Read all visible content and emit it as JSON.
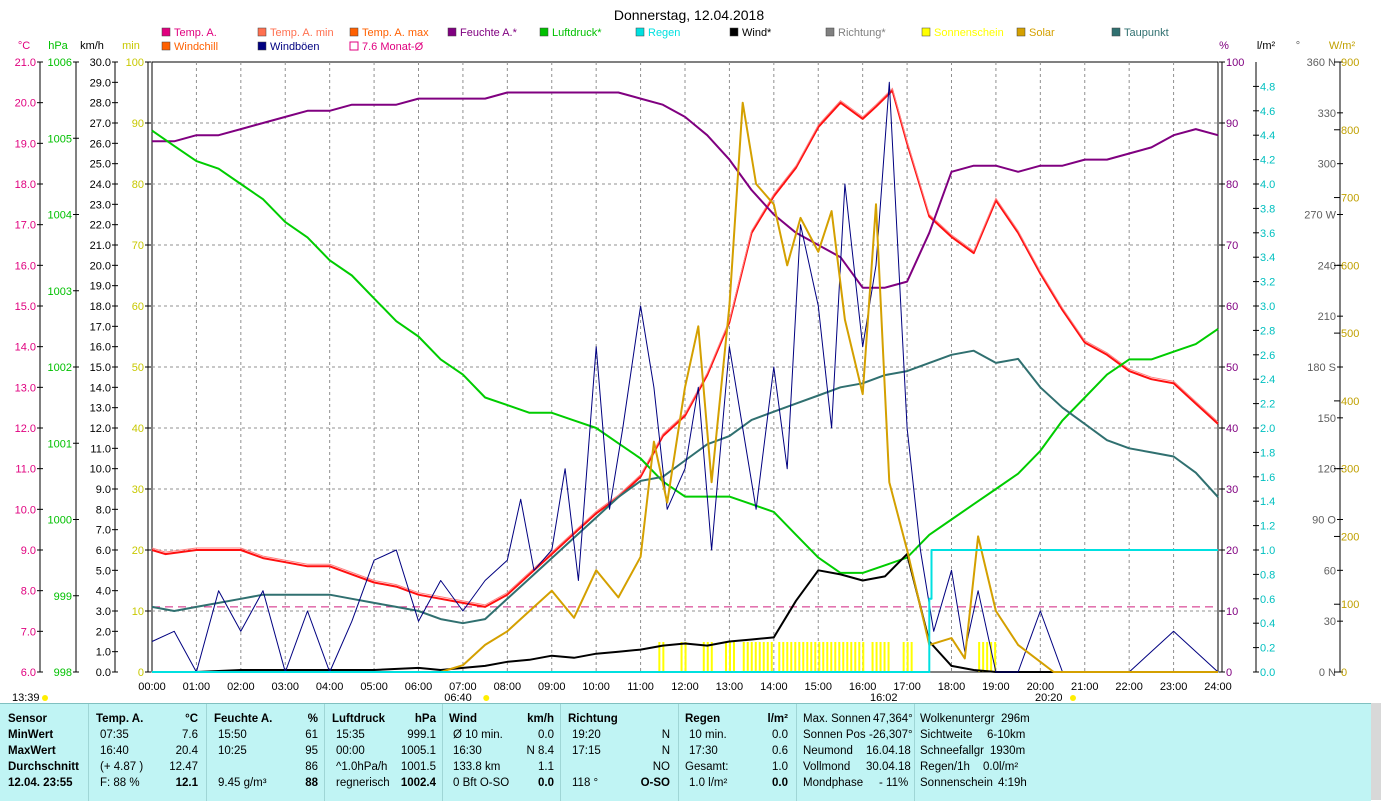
{
  "chart_data": {
    "type": "line",
    "title": "Donnerstag, 12.04.2018",
    "x_ticks": [
      "00:00",
      "01:00",
      "02:00",
      "03:00",
      "04:00",
      "05:00",
      "06:00",
      "07:00",
      "08:00",
      "09:00",
      "10:00",
      "11:00",
      "12:00",
      "13:00",
      "14:00",
      "15:00",
      "16:00",
      "17:00",
      "18:00",
      "19:00",
      "20:00",
      "21:00",
      "22:00",
      "23:00",
      "24:00"
    ],
    "xlim": [
      0,
      24
    ],
    "sunrise": "06:40",
    "sunset": "20:20",
    "marker_1339": "13:39",
    "marker_1602": "16:02",
    "axes": {
      "temp": {
        "unit": "°C",
        "range": [
          6,
          21
        ],
        "color": "#e0007f",
        "ticks": [
          "21.0",
          "20.0",
          "19.0",
          "18.0",
          "17.0",
          "16.0",
          "15.0",
          "14.0",
          "13.0",
          "12.0",
          "11.0",
          "10.0",
          "9.0",
          "8.0",
          "7.0",
          "6.0"
        ]
      },
      "pressure": {
        "unit": "hPa",
        "range": [
          998,
          1006
        ],
        "color": "#00c000",
        "ticks": [
          "1006",
          "1005",
          "1004",
          "1003",
          "1002",
          "1001",
          "1000",
          "999",
          "998"
        ]
      },
      "wind": {
        "unit": "km/h",
        "range": [
          0,
          30
        ],
        "color": "#000000",
        "ticks": [
          "30.0",
          "29.0",
          "28.0",
          "27.0",
          "26.0",
          "25.0",
          "24.0",
          "23.0",
          "22.0",
          "21.0",
          "20.0",
          "19.0",
          "18.0",
          "17.0",
          "16.0",
          "15.0",
          "14.0",
          "13.0",
          "12.0",
          "11.0",
          "10.0",
          "9.0",
          "8.0",
          "7.0",
          "6.0",
          "5.0",
          "4.0",
          "3.0",
          "2.0",
          "1.0",
          "0.0"
        ]
      },
      "sunmin": {
        "unit": "min",
        "range": [
          0,
          100
        ],
        "color": "#c8c800",
        "ticks": [
          "100",
          "90",
          "80",
          "70",
          "60",
          "50",
          "40",
          "30",
          "20",
          "10",
          "0"
        ]
      },
      "humidity": {
        "unit": "%",
        "range": [
          0,
          100
        ],
        "color": "#800080",
        "ticks": [
          "100",
          "90",
          "80",
          "70",
          "60",
          "50",
          "40",
          "30",
          "20",
          "10",
          "0"
        ]
      },
      "rain": {
        "unit": "l/m²",
        "range": [
          0,
          5
        ],
        "color": "#00c0c0",
        "ticks": [
          "4.8",
          "4.6",
          "4.4",
          "4.2",
          "4.0",
          "3.8",
          "3.6",
          "3.4",
          "3.2",
          "3.0",
          "2.8",
          "2.6",
          "2.4",
          "2.2",
          "2.0",
          "1.8",
          "1.6",
          "1.4",
          "1.2",
          "1.0",
          "0.8",
          "0.6",
          "0.4",
          "0.2",
          "0.0"
        ]
      },
      "direction": {
        "unit": "°",
        "range": [
          0,
          360
        ],
        "color": "#606060",
        "ticks": [
          "360 N",
          "330",
          "300",
          "270 W",
          "240",
          "210",
          "180 S",
          "150",
          "120",
          "90 O",
          "60",
          "30",
          "0 N"
        ]
      },
      "solar": {
        "unit": "W/m²",
        "range": [
          0,
          900
        ],
        "color": "#c0a000",
        "ticks": [
          "900",
          "800",
          "700",
          "600",
          "500",
          "400",
          "300",
          "200",
          "100",
          "0"
        ]
      }
    },
    "legend": [
      {
        "label": "Temp. A.",
        "color": "#e0007f"
      },
      {
        "label": "Windchill",
        "color": "#ff6000"
      },
      {
        "label": "Temp. A. min",
        "color": "#ff7050"
      },
      {
        "label": "Windböen",
        "color": "#000080"
      },
      {
        "label": "Temp. A. max",
        "color": "#ff6000"
      },
      {
        "label": "7.6 Monat-Ø",
        "color": "#e0007f"
      },
      {
        "label": "Feuchte A.*",
        "color": "#800080"
      },
      {
        "label": "Luftdruck*",
        "color": "#00c000"
      },
      {
        "label": "Regen",
        "color": "#00e0e0"
      },
      {
        "label": "Wind*",
        "color": "#000000"
      },
      {
        "label": "Richtung*",
        "color": "#808080"
      },
      {
        "label": "Sonnenschein",
        "color": "#ffff00"
      },
      {
        "label": "Solar",
        "color": "#d4a000"
      },
      {
        "label": "Taupunkt",
        "color": "#307070"
      }
    ],
    "monthly_avg_temp": 7.6,
    "series": [
      {
        "name": "Temp. A.",
        "axis": "temp",
        "color": "#ff1010",
        "x": [
          0,
          0.3,
          1,
          1.5,
          2,
          2.5,
          3,
          3.5,
          4,
          4.5,
          5,
          5.5,
          6,
          6.5,
          7,
          7.5,
          8,
          8.5,
          9,
          9.5,
          10,
          10.5,
          11,
          11.5,
          12,
          12.5,
          13,
          13.5,
          14,
          14.5,
          15,
          15.5,
          16,
          16.3,
          16.67,
          17,
          17.5,
          18,
          18.5,
          19,
          19.5,
          20,
          20.5,
          21,
          21.5,
          22,
          22.5,
          23,
          23.5,
          24
        ],
        "y": [
          9.0,
          8.9,
          9.0,
          9.0,
          9.0,
          8.8,
          8.7,
          8.6,
          8.6,
          8.4,
          8.2,
          8.1,
          7.9,
          7.8,
          7.7,
          7.6,
          7.9,
          8.4,
          8.9,
          9.4,
          9.9,
          10.3,
          10.8,
          11.8,
          12.3,
          13.3,
          14.6,
          16.8,
          17.7,
          18.4,
          19.4,
          20.0,
          19.6,
          19.9,
          20.3,
          19.0,
          17.2,
          16.7,
          16.3,
          17.6,
          16.8,
          15.8,
          14.9,
          14.1,
          13.8,
          13.4,
          13.2,
          13.1,
          12.6,
          12.1
        ]
      },
      {
        "name": "Feuchte A.*",
        "axis": "humidity",
        "color": "#800080",
        "x": [
          0,
          0.5,
          1,
          1.5,
          2,
          2.5,
          3,
          3.5,
          4,
          4.5,
          5,
          5.5,
          6,
          6.5,
          7,
          7.5,
          8,
          8.5,
          9,
          9.5,
          10,
          10.5,
          11,
          11.5,
          12,
          12.5,
          13,
          13.5,
          14,
          14.5,
          15,
          15.5,
          16,
          16.5,
          17,
          17.5,
          18,
          18.5,
          19,
          19.5,
          20,
          20.5,
          21,
          21.5,
          22,
          22.5,
          23,
          23.5,
          24
        ],
        "y": [
          87,
          87,
          88,
          88,
          89,
          90,
          91,
          92,
          92,
          93,
          93,
          93,
          94,
          94,
          94,
          94,
          95,
          95,
          95,
          95,
          95,
          95,
          94,
          93,
          91,
          88,
          84,
          79,
          75,
          72,
          70,
          68,
          63,
          63,
          64,
          72,
          82,
          83,
          83,
          82,
          83,
          83,
          84,
          84,
          85,
          86,
          88,
          89,
          88
        ]
      },
      {
        "name": "Luftdruck*",
        "axis": "pressure",
        "color": "#00cc00",
        "x": [
          0,
          0.5,
          1,
          1.5,
          2,
          2.5,
          3,
          3.5,
          4,
          4.5,
          5,
          5.5,
          6,
          6.5,
          7,
          7.5,
          8,
          8.5,
          9,
          9.5,
          10,
          10.5,
          11,
          11.5,
          12,
          12.5,
          13,
          13.5,
          14,
          14.5,
          15,
          15.5,
          16,
          16.5,
          17,
          17.5,
          18,
          18.5,
          19,
          19.5,
          20,
          20.5,
          21,
          21.5,
          22,
          22.5,
          23,
          23.5,
          24
        ],
        "y": [
          1005.1,
          1004.9,
          1004.7,
          1004.6,
          1004.4,
          1004.2,
          1003.9,
          1003.7,
          1003.4,
          1003.2,
          1002.9,
          1002.6,
          1002.4,
          1002.1,
          1001.9,
          1001.6,
          1001.5,
          1001.4,
          1001.4,
          1001.3,
          1001.2,
          1001.0,
          1000.8,
          1000.5,
          1000.3,
          1000.3,
          1000.3,
          1000.2,
          1000.1,
          999.8,
          999.5,
          999.3,
          999.3,
          999.4,
          999.5,
          999.8,
          1000.0,
          1000.2,
          1000.4,
          1000.6,
          1000.9,
          1001.3,
          1001.6,
          1001.9,
          1002.1,
          1002.1,
          1002.2,
          1002.3,
          1002.5
        ]
      },
      {
        "name": "Taupunkt",
        "axis": "temp",
        "color": "#307070",
        "x": [
          0,
          0.5,
          1,
          1.5,
          2,
          2.5,
          3,
          3.5,
          4,
          4.5,
          5,
          5.5,
          6,
          6.5,
          7,
          7.5,
          8,
          8.5,
          9,
          9.5,
          10,
          10.5,
          11,
          11.5,
          12,
          12.5,
          13,
          13.5,
          14,
          14.5,
          15,
          15.5,
          16,
          16.5,
          17,
          17.5,
          18,
          18.5,
          19,
          19.5,
          20,
          20.5,
          21,
          21.5,
          22,
          22.5,
          23,
          23.5,
          24
        ],
        "y": [
          7.6,
          7.5,
          7.6,
          7.7,
          7.8,
          7.9,
          7.9,
          7.9,
          7.9,
          7.8,
          7.7,
          7.6,
          7.5,
          7.3,
          7.2,
          7.3,
          7.8,
          8.3,
          8.8,
          9.3,
          9.8,
          10.3,
          10.7,
          10.8,
          11.2,
          11.6,
          11.8,
          12.2,
          12.4,
          12.6,
          12.8,
          13.0,
          13.1,
          13.3,
          13.4,
          13.6,
          13.8,
          13.9,
          13.6,
          13.7,
          13.0,
          12.5,
          12.1,
          11.7,
          11.5,
          11.4,
          11.3,
          10.9,
          10.3
        ]
      },
      {
        "name": "Wind*",
        "axis": "wind",
        "color": "#000000",
        "x": [
          0,
          1,
          2,
          3,
          4,
          5,
          6,
          6.5,
          7,
          7.5,
          8,
          8.5,
          9,
          9.5,
          10,
          10.5,
          11,
          11.5,
          12,
          12.5,
          13,
          13.5,
          14,
          14.5,
          15,
          15.5,
          16,
          16.5,
          17,
          17.5,
          18,
          18.5,
          19,
          20,
          21,
          22,
          23,
          24
        ],
        "y": [
          0,
          0,
          0.1,
          0.1,
          0.1,
          0.1,
          0.2,
          0.1,
          0.2,
          0.3,
          0.5,
          0.6,
          0.8,
          0.7,
          0.9,
          1.0,
          1.1,
          1.3,
          1.4,
          1.3,
          1.5,
          1.6,
          1.7,
          3.5,
          5.0,
          4.8,
          4.5,
          4.7,
          5.8,
          1.5,
          0.3,
          0.1,
          0,
          0,
          0,
          0,
          0,
          0
        ]
      },
      {
        "name": "Windböen",
        "axis": "wind",
        "color": "#000080",
        "x": [
          0,
          0.5,
          1,
          1.5,
          2,
          2.5,
          3,
          3.5,
          4,
          4.5,
          5,
          5.5,
          6,
          6.5,
          7,
          7.5,
          8,
          8.3,
          8.6,
          9,
          9.3,
          9.6,
          10,
          10.3,
          10.6,
          11,
          11.3,
          11.6,
          12,
          12.3,
          12.6,
          13,
          13.3,
          13.6,
          14,
          14.3,
          14.6,
          15,
          15.3,
          15.6,
          16,
          16.3,
          16.6,
          17,
          17.3,
          17.6,
          18,
          18.3,
          18.6,
          19,
          19.5,
          20,
          20.5,
          21,
          22,
          23,
          24
        ],
        "y": [
          1.5,
          2.0,
          0,
          4.0,
          2.0,
          4.0,
          0,
          3.0,
          0,
          2.5,
          5.5,
          6.0,
          2.5,
          4.5,
          3.0,
          4.5,
          5.5,
          8.5,
          5.0,
          6.0,
          10.0,
          4.5,
          16.0,
          8.0,
          12.0,
          18.0,
          14.0,
          8.0,
          10.0,
          14.0,
          6.0,
          16.0,
          12.0,
          8.0,
          15.0,
          10.0,
          22.0,
          18.0,
          12.0,
          24.0,
          16.0,
          20.0,
          29.0,
          12.0,
          6.0,
          2.0,
          5.0,
          1.0,
          4.0,
          0,
          0,
          3.0,
          0,
          0,
          0,
          2.0,
          0
        ]
      },
      {
        "name": "Solar",
        "axis": "solar",
        "color": "#d4a000",
        "x": [
          0,
          6.5,
          7,
          7.5,
          8,
          8.5,
          9,
          9.5,
          10,
          10.5,
          11,
          11.3,
          11.6,
          12,
          12.3,
          12.6,
          13,
          13.3,
          13.6,
          14,
          14.3,
          14.6,
          15,
          15.3,
          15.6,
          16,
          16.3,
          16.6,
          17,
          17.5,
          18,
          18.3,
          18.6,
          19,
          19.5,
          20,
          20.3,
          24
        ],
        "y": [
          0,
          0,
          10,
          40,
          60,
          90,
          120,
          80,
          150,
          110,
          170,
          340,
          250,
          420,
          510,
          280,
          540,
          840,
          720,
          690,
          600,
          670,
          620,
          680,
          520,
          410,
          690,
          280,
          180,
          40,
          50,
          20,
          200,
          90,
          40,
          15,
          0,
          0
        ]
      },
      {
        "name": "Regen",
        "axis": "rain",
        "color": "#00e0e0",
        "x": [
          0,
          17.45,
          17.5,
          17.55,
          24
        ],
        "y": [
          0,
          0,
          0.6,
          1.0,
          1.0
        ]
      }
    ],
    "sunshine_bars_hours": [
      [
        11.4,
        11.55
      ],
      [
        11.9,
        12.0
      ],
      [
        12.4,
        12.6
      ],
      [
        12.9,
        13.1
      ],
      [
        13.3,
        14.0
      ],
      [
        14.1,
        16.0
      ],
      [
        16.2,
        16.6
      ],
      [
        16.9,
        17.1
      ],
      [
        18.6,
        19.0
      ]
    ]
  },
  "stats": {
    "headers": {
      "sensor": "Sensor",
      "temp": "Temp. A.",
      "temp_unit": "°C",
      "hum": "Feuchte A.",
      "hum_unit": "%",
      "press": "Luftdruck",
      "press_unit": "hPa",
      "wind": "Wind",
      "wind_unit": "km/h",
      "dir": "Richtung",
      "rain": "Regen",
      "rain_unit": "l/m²"
    },
    "rows": {
      "min": "MinWert",
      "max": "MaxWert",
      "avg": "Durchschnitt",
      "date": "12.04. 23:55"
    },
    "temp": {
      "min_time": "07:35",
      "min_val": "7.6",
      "max_time": "16:40",
      "max_val": "20.4",
      "avg_delta": "(+ 4.87 )",
      "avg_val": "12.47",
      "feel": "F: 88 %",
      "cur": "12.1"
    },
    "hum": {
      "min_time": "15:50",
      "min_val": "61",
      "max_time": "10:25",
      "max_val": "95",
      "avg_val": "86",
      "abs": "9.45 g/m³",
      "cur": "88"
    },
    "press": {
      "min_time": "15:35",
      "min_val": "999.1",
      "max_time": "00:00",
      "max_val": "1005.1",
      "trend": "^1.0hPa/h",
      "avg_val": "1001.5",
      "desc": "regnerisch",
      "cur": "1002.4"
    },
    "wind": {
      "r1_label": "Ø 10 min.",
      "r1_val": "0.0",
      "r2_time": "16:30",
      "r2_val": "N 8.4",
      "r3_label": "133.8 km",
      "r3_val": "1.1",
      "r4_label": "0 Bft O-SO",
      "r4_val": "0.0"
    },
    "dir": {
      "r1_time": "19:20",
      "r1_val": "N",
      "r2_time": "17:15",
      "r2_val": "N",
      "r3_val": "NO",
      "r4_label": "118 °",
      "r4_val": "O-SO"
    },
    "rain": {
      "r1_label": "10 min.",
      "r1_val": "0.0",
      "r2_time": "17:30",
      "r2_val": "0.6",
      "r3_label": "Gesamt:",
      "r3_val": "1.0",
      "r4_label": "1.0 l/m²",
      "r4_val": "0.0"
    },
    "astro": {
      "l1": "Max. Sonnen",
      "v1": "47,364°",
      "l2": "Sonnen Pos",
      "v2": "-26,307°",
      "l3": "Neumond",
      "v3": "16.04.18",
      "l4": "Vollmond",
      "v4": "30.04.18",
      "l5": "Mondphase",
      "v5": "- 11%"
    },
    "misc": {
      "l1": "Wolkenuntergr",
      "v1": "296m",
      "l2": "Sichtweite",
      "v2": "6-10km",
      "l3": "Schneefallgr",
      "v3": "1930m",
      "l4": "Regen/1h",
      "v4": "0.0l/m²",
      "l5": "Sonnenschein",
      "v5": "4:19h"
    }
  }
}
